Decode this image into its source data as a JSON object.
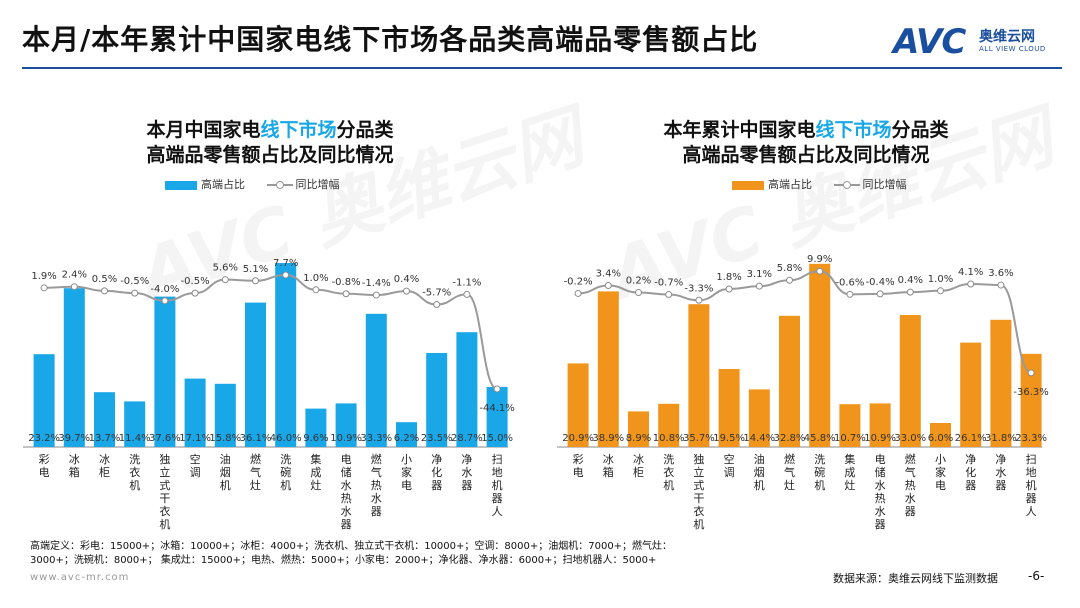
{
  "page": {
    "title": "本月/本年累计中国家电线下市场各品类高端品零售额占比",
    "logo": {
      "mark": "AVC",
      "cn": "奥维云网",
      "en": "ALL VIEW CLOUD"
    },
    "footnote_line1": "高端定义：彩电：15000+；冰箱：10000+；冰柜：4000+；洗衣机、独立式干衣机：10000+；空调：8000+；油烟机：7000+；燃气灶：",
    "footnote_line2": "3000+；洗碗机：8000+；    集成灶：15000+；电热、燃热：5000+；小家电：2000+；净化器、净水器：6000+；扫地机器人：5000+",
    "website": "www.avc-mr.com",
    "source": "数据来源：奥维云网线下监测数据",
    "page_number": "-6-"
  },
  "chart_data": [
    {
      "type": "bar+line",
      "title_line1_pre": "本月中国家电",
      "title_line1_hl": "线下市场",
      "title_line1_post": "分品类",
      "title_line2": "高端品零售额占比及同比情况",
      "legend": {
        "bar": "高端占比",
        "line": "同比增幅"
      },
      "bar_color": "#1aa7e8",
      "categories": [
        "彩电",
        "冰箱",
        "冰柜",
        "洗衣机",
        "独立式干衣机",
        "空调",
        "油烟机",
        "燃气灶",
        "洗碗机",
        "集成灶",
        "电储水热水器",
        "燃气热水器",
        "小家电",
        "净化器",
        "净水器",
        "扫地机器人"
      ],
      "series": [
        {
          "name": "高端占比",
          "unit": "%",
          "values": [
            23.2,
            39.7,
            13.7,
            11.4,
            37.6,
            17.1,
            15.8,
            36.1,
            46.0,
            9.6,
            10.9,
            33.3,
            6.2,
            23.5,
            28.7,
            15.0
          ]
        },
        {
          "name": "同比增幅",
          "unit": "%",
          "values": [
            1.9,
            2.4,
            0.5,
            -0.5,
            -4.0,
            -0.5,
            5.6,
            5.1,
            7.7,
            1.0,
            -0.8,
            -1.4,
            0.4,
            -5.7,
            -1.1,
            -44.1
          ]
        }
      ]
    },
    {
      "type": "bar+line",
      "title_line1_pre": "本年累计中国家电",
      "title_line1_hl": "线下市场",
      "title_line1_post": "分品类",
      "title_line2": "高端品零售额占比及同比情况",
      "legend": {
        "bar": "高端占比",
        "line": "同比增幅"
      },
      "bar_color": "#f0941b",
      "categories": [
        "彩电",
        "冰箱",
        "冰柜",
        "洗衣机",
        "独立式干衣机",
        "空调",
        "油烟机",
        "燃气灶",
        "洗碗机",
        "集成灶",
        "电储水热水器",
        "燃气热水器",
        "小家电",
        "净化器",
        "净水器",
        "扫地机器人"
      ],
      "series": [
        {
          "name": "高端占比",
          "unit": "%",
          "values": [
            20.9,
            38.9,
            8.9,
            10.8,
            35.7,
            19.5,
            14.4,
            32.8,
            45.8,
            10.7,
            10.9,
            33.0,
            6.0,
            26.1,
            31.8,
            23.3
          ]
        },
        {
          "name": "同比增幅",
          "unit": "%",
          "values": [
            -0.2,
            3.4,
            0.2,
            -0.7,
            -3.3,
            1.8,
            3.1,
            5.8,
            9.9,
            -0.6,
            -0.4,
            0.4,
            1.0,
            4.1,
            3.6,
            -36.3
          ]
        }
      ]
    }
  ]
}
